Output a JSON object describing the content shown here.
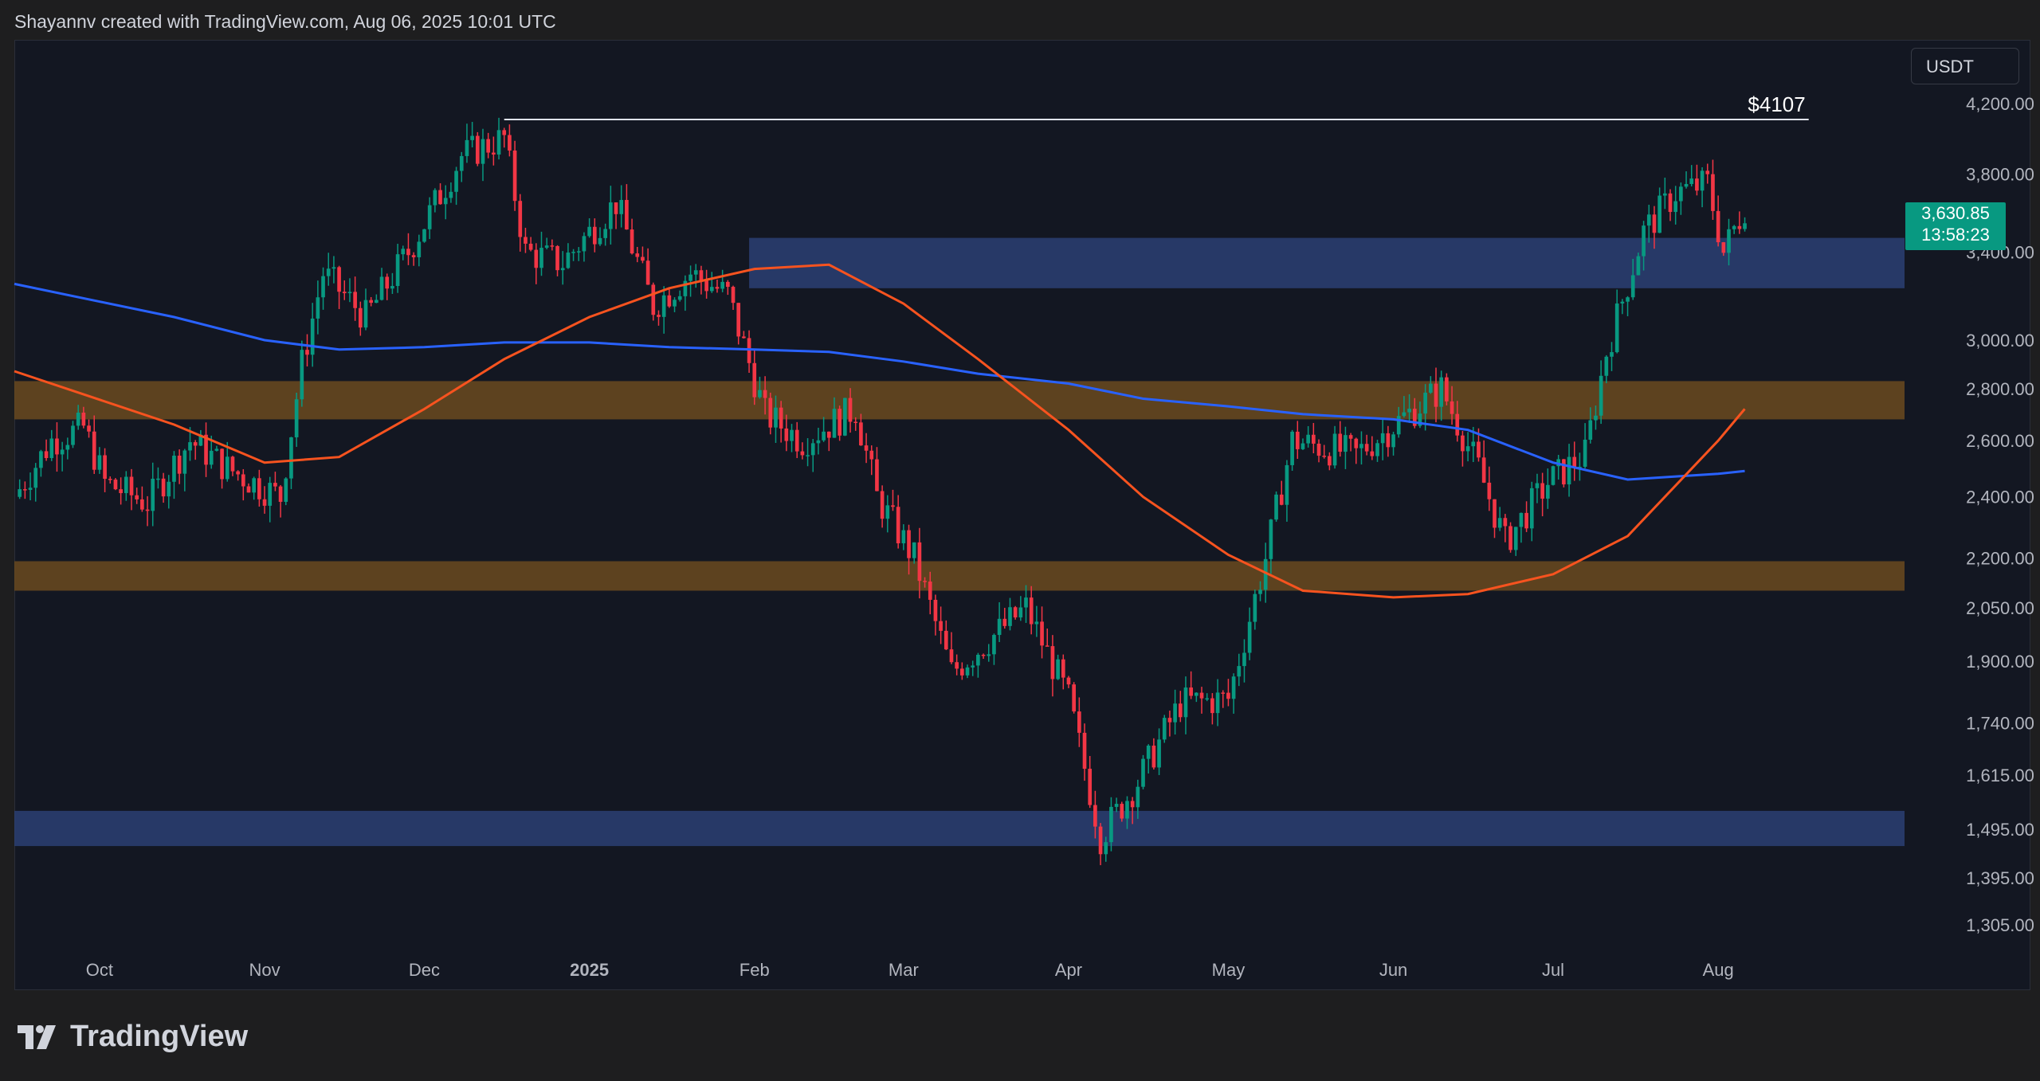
{
  "header": {
    "attribution": "Shayannv created with TradingView.com, Aug 06, 2025 10:01 UTC"
  },
  "currency_button": {
    "label": "USDT"
  },
  "brand": {
    "name": "TradingView"
  },
  "price_tag": {
    "price": "3,630.85",
    "countdown": "13:58:23"
  },
  "colors": {
    "background": "#131722",
    "up": "#089981",
    "down": "#f23645",
    "ma_fast": "#f7531f",
    "ma_slow": "#2962ff",
    "zone_blue": "#2b3f73",
    "zone_orange": "#6b4a1e"
  },
  "chart_data": {
    "type": "candlestick",
    "symbol_quote": "USDT",
    "scale": "log",
    "y_ticks": [
      "4,200.00",
      "3,800.00",
      "3,400.00",
      "3,000.00",
      "2,800.00",
      "2,600.00",
      "2,400.00",
      "2,200.00",
      "2,050.00",
      "1,900.00",
      "1,740.00",
      "1,615.00",
      "1,495.00",
      "1,395.00",
      "1,305.00"
    ],
    "y_tick_values": [
      4200,
      3800,
      3400,
      3000,
      2800,
      2600,
      2400,
      2200,
      2050,
      1900,
      1740,
      1615,
      1495,
      1395,
      1305
    ],
    "x_ticks": [
      {
        "label": "Oct",
        "date": "2024-10-01"
      },
      {
        "label": "Nov",
        "date": "2024-11-01"
      },
      {
        "label": "Dec",
        "date": "2024-12-01"
      },
      {
        "label": "2025",
        "date": "2025-01-01",
        "bold": true
      },
      {
        "label": "Feb",
        "date": "2025-02-01"
      },
      {
        "label": "Mar",
        "date": "2025-03-01"
      },
      {
        "label": "Apr",
        "date": "2025-04-01"
      },
      {
        "label": "May",
        "date": "2025-05-01"
      },
      {
        "label": "Jun",
        "date": "2025-06-01"
      },
      {
        "label": "Jul",
        "date": "2025-07-01"
      },
      {
        "label": "Aug",
        "date": "2025-08-01"
      }
    ],
    "date_range": [
      "2024-09-15",
      "2025-09-05"
    ],
    "y_range": [
      1260,
      4600
    ],
    "resistance_line": {
      "label": "$4107",
      "value": 4107,
      "from": "2024-12-16",
      "to": "2025-08-18"
    },
    "zones": [
      {
        "color": "blue",
        "from": "2025-01-31",
        "low": 3230,
        "high": 3470
      },
      {
        "color": "orange",
        "from": "2024-09-15",
        "low": 2680,
        "high": 2830
      },
      {
        "color": "orange",
        "from": "2024-09-15",
        "low": 2100,
        "high": 2190
      },
      {
        "color": "blue",
        "from": "2024-09-15",
        "low": 1460,
        "high": 1535
      }
    ],
    "ma_fast_points": [
      [
        "2024-09-15",
        2870
      ],
      [
        "2024-10-15",
        2660
      ],
      [
        "2024-11-01",
        2520
      ],
      [
        "2024-11-15",
        2540
      ],
      [
        "2024-12-01",
        2720
      ],
      [
        "2024-12-16",
        2920
      ],
      [
        "2025-01-01",
        3100
      ],
      [
        "2025-01-16",
        3230
      ],
      [
        "2025-02-01",
        3320
      ],
      [
        "2025-02-15",
        3340
      ],
      [
        "2025-03-01",
        3160
      ],
      [
        "2025-03-15",
        2920
      ],
      [
        "2025-04-01",
        2640
      ],
      [
        "2025-04-15",
        2400
      ],
      [
        "2025-05-01",
        2210
      ],
      [
        "2025-05-15",
        2100
      ],
      [
        "2025-06-01",
        2080
      ],
      [
        "2025-06-15",
        2090
      ],
      [
        "2025-07-01",
        2150
      ],
      [
        "2025-07-15",
        2270
      ],
      [
        "2025-08-01",
        2600
      ],
      [
        "2025-08-06",
        2720
      ]
    ],
    "ma_slow_points": [
      [
        "2024-09-15",
        3250
      ],
      [
        "2024-10-15",
        3100
      ],
      [
        "2024-11-01",
        3000
      ],
      [
        "2024-11-15",
        2960
      ],
      [
        "2024-12-01",
        2970
      ],
      [
        "2024-12-16",
        2990
      ],
      [
        "2025-01-01",
        2990
      ],
      [
        "2025-01-16",
        2970
      ],
      [
        "2025-02-01",
        2960
      ],
      [
        "2025-02-15",
        2950
      ],
      [
        "2025-03-01",
        2910
      ],
      [
        "2025-03-15",
        2860
      ],
      [
        "2025-04-01",
        2820
      ],
      [
        "2025-04-15",
        2760
      ],
      [
        "2025-05-01",
        2730
      ],
      [
        "2025-05-15",
        2700
      ],
      [
        "2025-06-01",
        2680
      ],
      [
        "2025-06-15",
        2640
      ],
      [
        "2025-07-01",
        2520
      ],
      [
        "2025-07-15",
        2460
      ],
      [
        "2025-08-01",
        2480
      ],
      [
        "2025-08-06",
        2490
      ]
    ],
    "close_path": [
      [
        "2024-09-15",
        2400
      ],
      [
        "2024-09-22",
        2600
      ],
      [
        "2024-09-28",
        2650
      ],
      [
        "2024-10-02",
        2450
      ],
      [
        "2024-10-10",
        2380
      ],
      [
        "2024-10-18",
        2600
      ],
      [
        "2024-10-25",
        2500
      ],
      [
        "2024-11-04",
        2400
      ],
      [
        "2024-11-08",
        2900
      ],
      [
        "2024-11-12",
        3300
      ],
      [
        "2024-11-20",
        3100
      ],
      [
        "2024-11-28",
        3400
      ],
      [
        "2024-12-08",
        3900
      ],
      [
        "2024-12-16",
        4000
      ],
      [
        "2024-12-20",
        3400
      ],
      [
        "2024-12-27",
        3350
      ],
      [
        "2025-01-06",
        3650
      ],
      [
        "2025-01-13",
        3150
      ],
      [
        "2025-01-20",
        3300
      ],
      [
        "2025-01-27",
        3200
      ],
      [
        "2025-02-03",
        2700
      ],
      [
        "2025-02-10",
        2600
      ],
      [
        "2025-02-20",
        2720
      ],
      [
        "2025-02-24",
        2400
      ],
      [
        "2025-03-03",
        2200
      ],
      [
        "2025-03-10",
        1870
      ],
      [
        "2025-03-24",
        2050
      ],
      [
        "2025-04-01",
        1800
      ],
      [
        "2025-04-07",
        1480
      ],
      [
        "2025-04-14",
        1600
      ],
      [
        "2025-04-22",
        1790
      ],
      [
        "2025-05-01",
        1800
      ],
      [
        "2025-05-08",
        2200
      ],
      [
        "2025-05-13",
        2600
      ],
      [
        "2025-05-25",
        2550
      ],
      [
        "2025-06-10",
        2800
      ],
      [
        "2025-06-17",
        2500
      ],
      [
        "2025-06-22",
        2250
      ],
      [
        "2025-06-30",
        2450
      ],
      [
        "2025-07-07",
        2550
      ],
      [
        "2025-07-11",
        2950
      ],
      [
        "2025-07-18",
        3500
      ],
      [
        "2025-07-24",
        3700
      ],
      [
        "2025-07-30",
        3750
      ],
      [
        "2025-08-02",
        3400
      ],
      [
        "2025-08-06",
        3630
      ]
    ],
    "last_price": 3630.85
  }
}
